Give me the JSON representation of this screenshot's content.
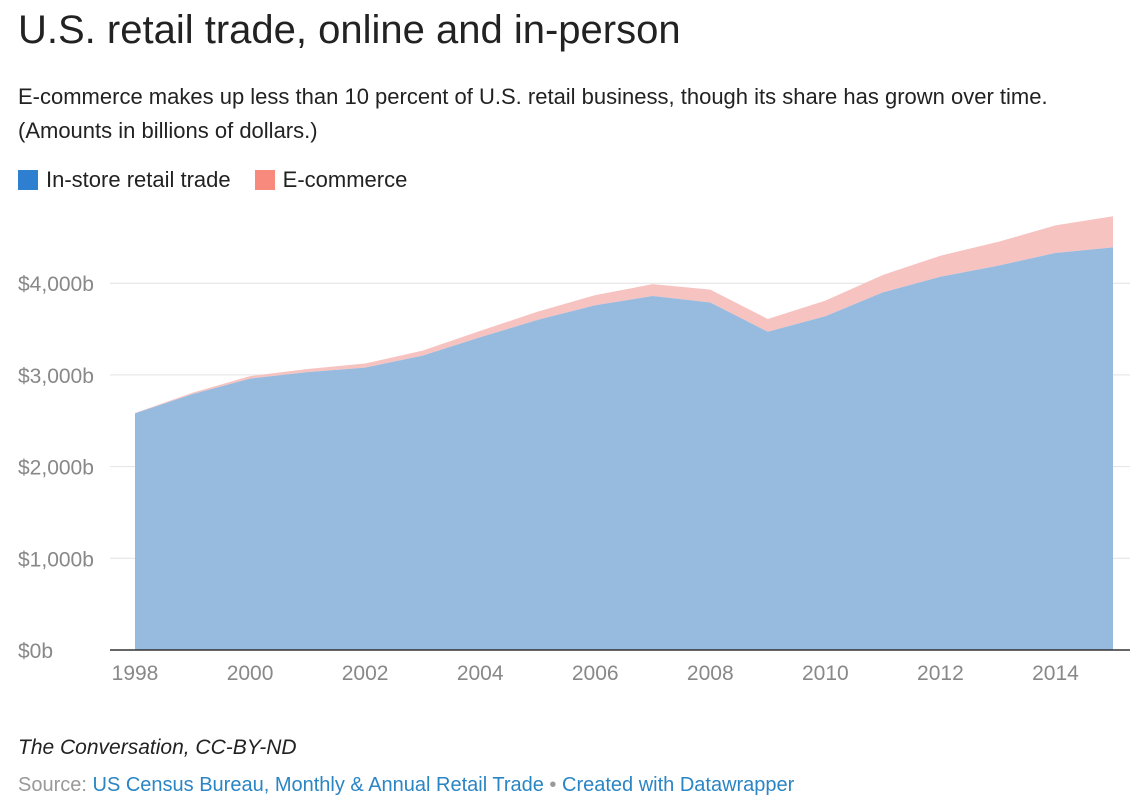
{
  "header": {
    "title": "U.S. retail trade, online and in-person",
    "subtitle": "E-commerce makes up less than 10 percent of U.S. retail business, though its share has grown over time. (Amounts in billions of dollars.)"
  },
  "legend": [
    {
      "label": "In-store retail trade",
      "color": "#2f7fd0"
    },
    {
      "label": "E-commerce",
      "color": "#f7897d"
    }
  ],
  "chart_data": {
    "type": "area",
    "stacked": true,
    "x": [
      1998,
      1999,
      2000,
      2001,
      2002,
      2003,
      2004,
      2005,
      2006,
      2007,
      2008,
      2009,
      2010,
      2011,
      2012,
      2013,
      2014,
      2015
    ],
    "series": [
      {
        "name": "In-store retail trade",
        "color": "#97badf",
        "values": [
          2580,
          2790,
          2960,
          3030,
          3080,
          3210,
          3410,
          3600,
          3760,
          3860,
          3790,
          3470,
          3640,
          3900,
          4070,
          4190,
          4330,
          4390
        ]
      },
      {
        "name": "E-commerce",
        "color": "#f6c3c0",
        "values": [
          5,
          15,
          27,
          34,
          44,
          55,
          70,
          90,
          110,
          130,
          140,
          140,
          170,
          190,
          230,
          260,
          300,
          340
        ]
      }
    ],
    "ylim": [
      0,
      4700
    ],
    "yticks": [
      0,
      1000,
      2000,
      3000,
      4000
    ],
    "ytick_labels": [
      "$0b",
      "$1,000b",
      "$2,000b",
      "$3,000b",
      "$4,000b"
    ],
    "xticks": [
      1998,
      2000,
      2002,
      2004,
      2006,
      2008,
      2010,
      2012,
      2014
    ],
    "xtick_labels": [
      "1998",
      "2000",
      "2002",
      "2004",
      "2006",
      "2008",
      "2010",
      "2012",
      "2014"
    ],
    "xlim": [
      1998,
      2015
    ],
    "grid": true,
    "legend_position": "top-left"
  },
  "footer": {
    "byline": "The Conversation, CC-BY-ND",
    "source_prefix": "Source:",
    "source_link": "US Census Bureau, Monthly & Annual Retail Trade",
    "separator": "•",
    "credit": "Created with Datawrapper"
  }
}
